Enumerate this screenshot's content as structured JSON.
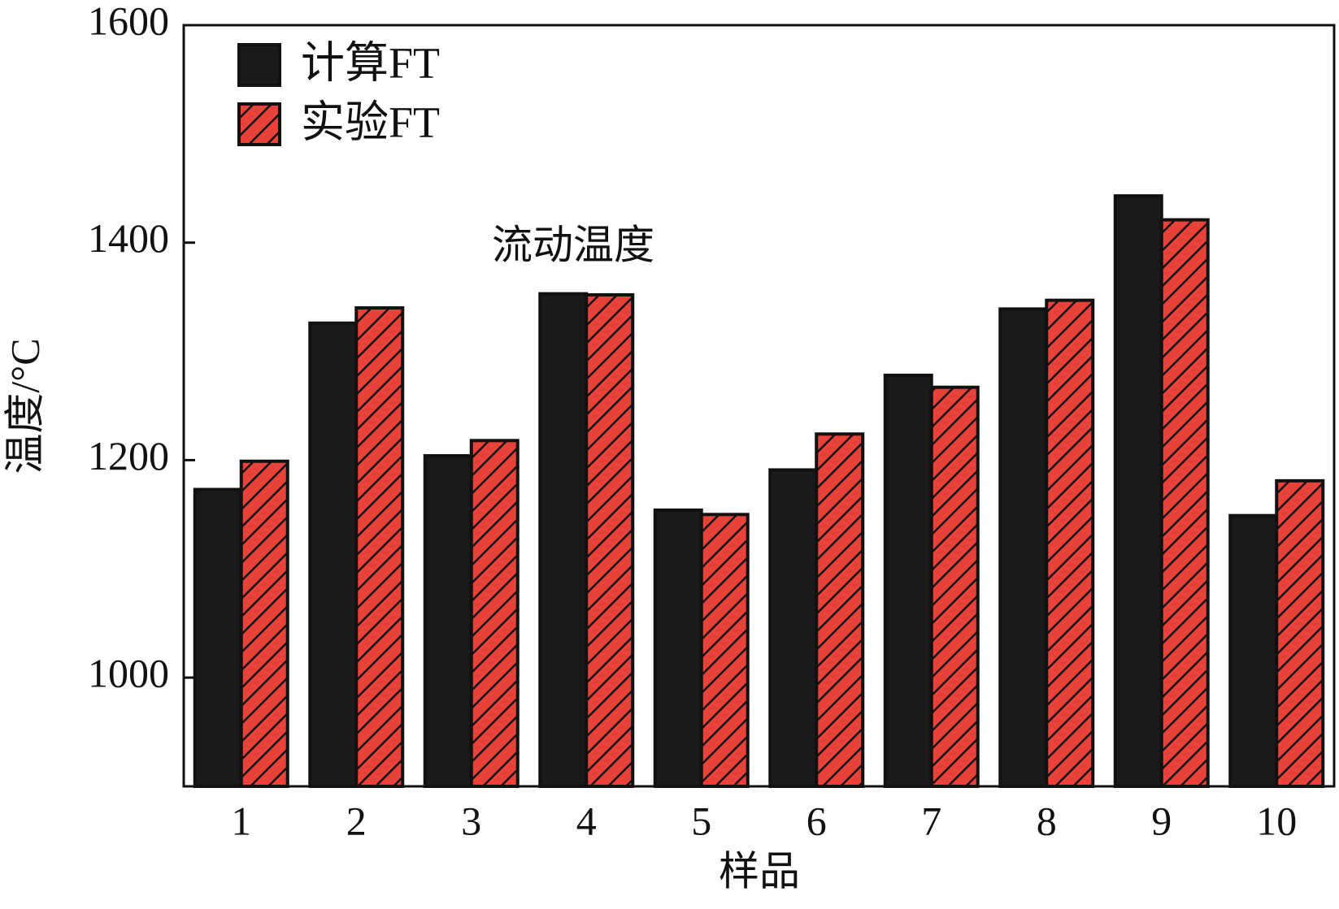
{
  "chart_data": {
    "type": "bar",
    "annotation": "流动温度",
    "x_label": "样品",
    "y_label": "温度/°C",
    "categories": [
      "1",
      "2",
      "3",
      "4",
      "5",
      "6",
      "7",
      "8",
      "9",
      "10"
    ],
    "series": [
      {
        "name": "计算FT",
        "color": "#1a1a1a",
        "hatch": false,
        "values": [
          1173,
          1326,
          1204,
          1353,
          1154,
          1191,
          1278,
          1339,
          1443,
          1149
        ]
      },
      {
        "name": "实验FT",
        "color": "#e8433a",
        "hatch": true,
        "values": [
          1199,
          1340,
          1218,
          1352,
          1150,
          1224,
          1267,
          1347,
          1421,
          1181
        ]
      }
    ],
    "ylim": [
      900,
      1600
    ],
    "yticks": [
      1000,
      1200,
      1400,
      1600
    ],
    "legend": "upper left"
  }
}
